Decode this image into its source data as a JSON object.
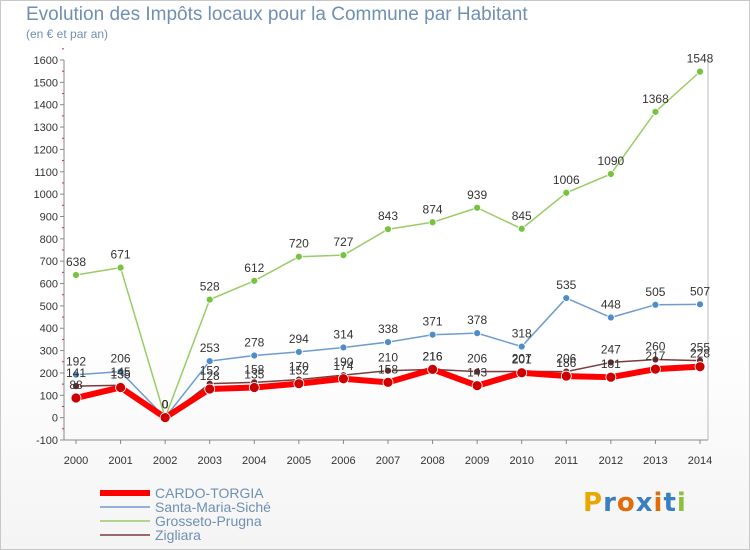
{
  "title": "Evolution des Impôts locaux pour la Commune par Habitant",
  "subtitle": "(en € et par an)",
  "logo": {
    "letters": [
      "P",
      "r",
      "o",
      "x",
      "i",
      "t",
      "i"
    ],
    "colors": [
      "#e8a800",
      "#3a7fc1",
      "#e36c0a",
      "#3a7fc1",
      "#e36c0a",
      "#3a7fc1",
      "#8dbf3f"
    ]
  },
  "chart_data": {
    "type": "line",
    "x": [
      "2000",
      "2001",
      "2002",
      "2003",
      "2004",
      "2005",
      "2006",
      "2007",
      "2008",
      "2009",
      "2010",
      "2011",
      "2012",
      "2013",
      "2014"
    ],
    "ylim": [
      -100,
      1600
    ],
    "yticks": [
      -100,
      0,
      100,
      200,
      300,
      400,
      500,
      600,
      700,
      800,
      900,
      1000,
      1100,
      1200,
      1300,
      1400,
      1500,
      1600
    ],
    "grid": false,
    "legend_position": "bottom-left",
    "series": [
      {
        "name": "Grosseto-Prugna",
        "color": "#99cc66",
        "marker": "#77c340",
        "width": 1.5,
        "values": [
          638,
          671,
          0,
          528,
          612,
          720,
          727,
          843,
          874,
          939,
          845,
          1006,
          1090,
          1368,
          1548
        ],
        "labels": [
          "638",
          "671",
          "0",
          "528",
          "612",
          "720",
          "727",
          "843",
          "874",
          "939",
          "845",
          "1006",
          "1090",
          "1368",
          "1548"
        ]
      },
      {
        "name": "Santa-Maria-Siché",
        "color": "#6f9ccf",
        "marker": "#4f8cc9",
        "width": 1.5,
        "values": [
          192,
          206,
          0,
          253,
          278,
          294,
          314,
          338,
          371,
          378,
          318,
          535,
          448,
          505,
          507
        ],
        "labels": [
          "192",
          "206",
          "0",
          "253",
          "278",
          "294",
          "314",
          "338",
          "371",
          "378",
          "318",
          "535",
          "448",
          "505",
          "507"
        ]
      },
      {
        "name": "Zigliara",
        "color": "#7a3c3c",
        "marker": "#6b2a2a",
        "width": 1.5,
        "values": [
          141,
          145,
          0,
          152,
          158,
          170,
          190,
          210,
          216,
          206,
          207,
          206,
          247,
          260,
          255
        ],
        "labels": [
          "141",
          "145",
          "0",
          "152",
          "158",
          "170",
          "190",
          "210",
          "216",
          "206",
          "207",
          "206",
          "247",
          "260",
          "255"
        ]
      },
      {
        "name": "CARDO-TORGIA",
        "color": "#ff0000",
        "marker": "#cc0000",
        "width": 6,
        "values": [
          88,
          135,
          0,
          128,
          135,
          152,
          174,
          158,
          216,
          143,
          201,
          186,
          181,
          217,
          228
        ],
        "labels": [
          "88",
          "135",
          "0",
          "128",
          "135",
          "152",
          "174",
          "158",
          "216",
          "143",
          "201",
          "186",
          "181",
          "217",
          "228"
        ]
      }
    ]
  }
}
